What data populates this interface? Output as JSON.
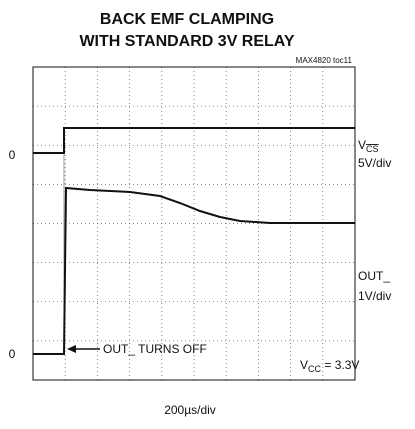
{
  "header": {
    "title_lines": [
      "BACK EMF CLAMPING",
      "WITH STANDARD 3V RELAY"
    ],
    "figure_id": "MAX4820 toc11"
  },
  "traces": [
    {
      "zero_label": "0",
      "name": "V",
      "name_sub": "CS",
      "scale": "5V/div"
    },
    {
      "zero_label": "0",
      "name": "OUT_",
      "scale": "1V/div"
    }
  ],
  "annotation": "OUT_ TURNS OFF",
  "condition": {
    "name": "V",
    "sub": "CC",
    "rest": " = 3.3V"
  },
  "time_scale": "200µs/div"
}
